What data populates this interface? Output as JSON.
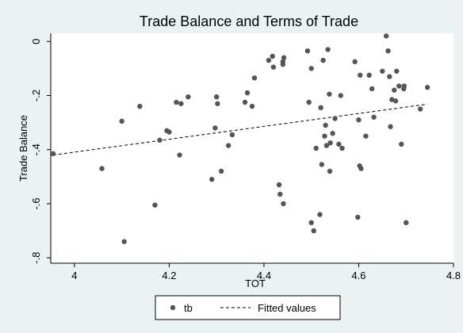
{
  "colors": {
    "outer_background": "#eaf2f3",
    "plot_background": "#ffffff",
    "marker": "#555555",
    "fit_line": "#000000",
    "axis": "#000000"
  },
  "chart_data": {
    "type": "scatter",
    "title": "Trade Balance and Terms of Trade",
    "xlabel": "TOT",
    "ylabel": "Trade Balance",
    "xlim": [
      3.95,
      4.8
    ],
    "ylim": [
      -0.82,
      0.03
    ],
    "xticks": [
      4,
      4.2,
      4.4,
      4.6,
      4.8
    ],
    "xtick_labels": [
      "4",
      "4.2",
      "4.4",
      "4.6",
      "4.8"
    ],
    "yticks": [
      0,
      -0.2,
      -0.4,
      -0.6,
      -0.8
    ],
    "ytick_labels": [
      "0",
      "-.2",
      "-.4",
      "-.6",
      "-.8"
    ],
    "grid": false,
    "legend_position": "bottom",
    "series": [
      {
        "name": "tb",
        "kind": "scatter",
        "marker": "circle",
        "x": [
          3.955,
          4.058,
          4.1,
          4.105,
          4.138,
          4.17,
          4.18,
          4.195,
          4.2,
          4.215,
          4.222,
          4.225,
          4.24,
          4.29,
          4.297,
          4.3,
          4.302,
          4.31,
          4.325,
          4.333,
          4.36,
          4.365,
          4.375,
          4.38,
          4.41,
          4.418,
          4.42,
          4.432,
          4.434,
          4.44,
          4.441,
          4.442,
          4.44,
          4.492,
          4.495,
          4.5,
          4.5,
          4.505,
          4.51,
          4.518,
          4.52,
          4.522,
          4.525,
          4.528,
          4.53,
          4.532,
          4.535,
          4.538,
          4.539,
          4.54,
          4.545,
          4.55,
          4.558,
          4.562,
          4.565,
          4.592,
          4.598,
          4.6,
          4.602,
          4.603,
          4.605,
          4.615,
          4.622,
          4.628,
          4.632,
          4.65,
          4.658,
          4.662,
          4.665,
          4.667,
          4.67,
          4.675,
          4.678,
          4.68,
          4.685,
          4.69,
          4.695,
          4.696,
          4.7,
          4.73,
          4.745
        ],
        "y": [
          -0.415,
          -0.47,
          -0.295,
          -0.74,
          -0.24,
          -0.605,
          -0.365,
          -0.33,
          -0.335,
          -0.225,
          -0.42,
          -0.23,
          -0.205,
          -0.51,
          -0.32,
          -0.205,
          -0.23,
          -0.48,
          -0.385,
          -0.345,
          -0.225,
          -0.19,
          -0.24,
          -0.135,
          -0.07,
          -0.055,
          -0.095,
          -0.53,
          -0.565,
          -0.075,
          -0.6,
          -0.06,
          -0.085,
          -0.035,
          -0.225,
          -0.1,
          -0.67,
          -0.7,
          -0.395,
          -0.64,
          -0.245,
          -0.455,
          -0.07,
          -0.35,
          -0.31,
          -0.385,
          -0.03,
          -0.195,
          -0.48,
          -0.375,
          -0.34,
          -0.285,
          -0.38,
          -0.2,
          -0.395,
          -0.075,
          -0.65,
          -0.29,
          -0.46,
          -0.125,
          -0.47,
          -0.35,
          -0.125,
          -0.175,
          -0.28,
          -0.11,
          0.02,
          -0.035,
          -0.13,
          -0.315,
          -0.215,
          -0.18,
          -0.22,
          -0.11,
          -0.165,
          -0.38,
          -0.175,
          -0.165,
          -0.67,
          -0.25,
          -0.17
        ]
      },
      {
        "name": "Fitted values",
        "kind": "line",
        "style": "dashed",
        "x": [
          3.955,
          4.745
        ],
        "y": [
          -0.42,
          -0.232
        ]
      }
    ]
  }
}
